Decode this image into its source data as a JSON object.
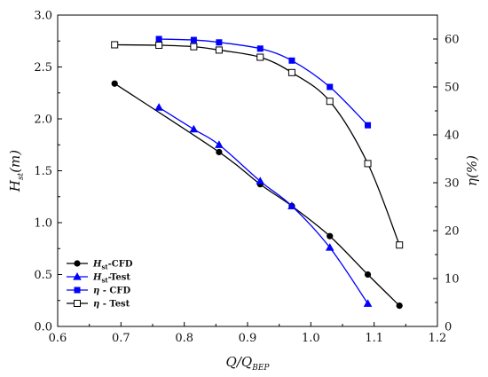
{
  "chart_data": {
    "type": "line",
    "xlabel": {
      "main": "Q/Q",
      "sub": "BEP"
    },
    "ylabel_left": {
      "main": "H",
      "sub": "st",
      "suffix": "(m)"
    },
    "ylabel_right": {
      "main": "η",
      "suffix": "(%)"
    },
    "xlim": [
      0.6,
      1.2
    ],
    "ylim_left": [
      0.0,
      3.0
    ],
    "ylim_right": [
      0,
      65
    ],
    "x_ticks": [
      "0.6",
      "0.7",
      "0.8",
      "0.9",
      "1.0",
      "1.1",
      "1.2"
    ],
    "y_left_ticks": [
      "0.0",
      "0.5",
      "1.0",
      "1.5",
      "2.0",
      "2.5",
      "3.0"
    ],
    "y_right_ticks": [
      "0",
      "10",
      "20",
      "30",
      "40",
      "50",
      "60"
    ],
    "legend_position": "bottom-left",
    "series": [
      {
        "legend": {
          "italic": "H",
          "sub": "st",
          "rest": "-CFD"
        },
        "axis": "left",
        "marker": "circle",
        "color": "#000000",
        "x": [
          0.69,
          0.855,
          0.92,
          0.97,
          1.03,
          1.09,
          1.14
        ],
        "y": [
          2.34,
          1.68,
          1.37,
          1.16,
          0.87,
          0.5,
          0.2
        ]
      },
      {
        "legend": {
          "italic": "H",
          "sub": "st",
          "rest": "-Test"
        },
        "axis": "left",
        "marker": "triangle",
        "color": "#0000ff",
        "x": [
          0.76,
          0.815,
          0.855,
          0.92,
          0.97,
          1.03,
          1.09
        ],
        "y": [
          2.11,
          1.9,
          1.75,
          1.4,
          1.16,
          0.76,
          0.22
        ]
      },
      {
        "legend": {
          "italic": "η",
          "sub": "",
          "rest": " - CFD"
        },
        "axis": "right",
        "marker": "square",
        "color": "#0000ff",
        "x": [
          0.76,
          0.815,
          0.855,
          0.92,
          0.97,
          1.03,
          1.09
        ],
        "y": [
          60,
          59.8,
          59.3,
          58,
          55.5,
          50,
          42
        ]
      },
      {
        "legend": {
          "italic": "η",
          "sub": "",
          "rest": " - Test"
        },
        "axis": "right",
        "marker": "open-square",
        "color": "#000000",
        "x": [
          0.69,
          0.76,
          0.815,
          0.855,
          0.92,
          0.97,
          1.03,
          1.09,
          1.14
        ],
        "y": [
          58.8,
          58.7,
          58.4,
          57.7,
          56.2,
          53,
          47,
          34,
          17
        ]
      }
    ]
  }
}
